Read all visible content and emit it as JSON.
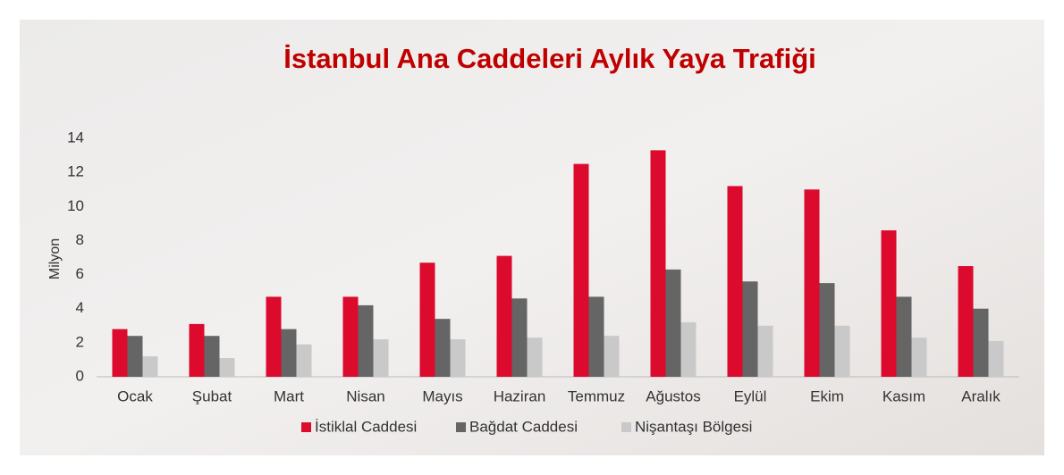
{
  "chart_data": {
    "type": "bar",
    "title": "İstanbul Ana Caddeleri Aylık Yaya Trafiği",
    "y_label": "Milyon",
    "categories": [
      "Ocak",
      "Şubat",
      "Mart",
      "Nisan",
      "Mayıs",
      "Haziran",
      "Temmuz",
      "Ağustos",
      "Eylül",
      "Ekim",
      "Kasım",
      "Aralık"
    ],
    "series": [
      {
        "name": "İstiklal Caddesi",
        "color": "#dc0a2d",
        "values": [
          2.8,
          3.1,
          4.7,
          4.7,
          6.7,
          7.1,
          12.5,
          13.3,
          11.2,
          11.0,
          8.6,
          6.5
        ]
      },
      {
        "name": "Bağdat Caddesi",
        "color": "#656565",
        "values": [
          2.4,
          2.4,
          2.8,
          4.2,
          3.4,
          4.6,
          4.7,
          6.3,
          5.6,
          5.5,
          4.7,
          4.0
        ]
      },
      {
        "name": "Nişantaşı Bölgesi",
        "color": "#c9c9c9",
        "values": [
          1.2,
          1.1,
          1.9,
          2.2,
          2.2,
          2.3,
          2.4,
          3.2,
          3.0,
          3.0,
          2.3,
          2.1
        ]
      }
    ],
    "ylim": [
      0,
      14
    ],
    "yticks": [
      0,
      2,
      4,
      6,
      8,
      10,
      12,
      14
    ],
    "grid": false,
    "legend": "bottom"
  }
}
